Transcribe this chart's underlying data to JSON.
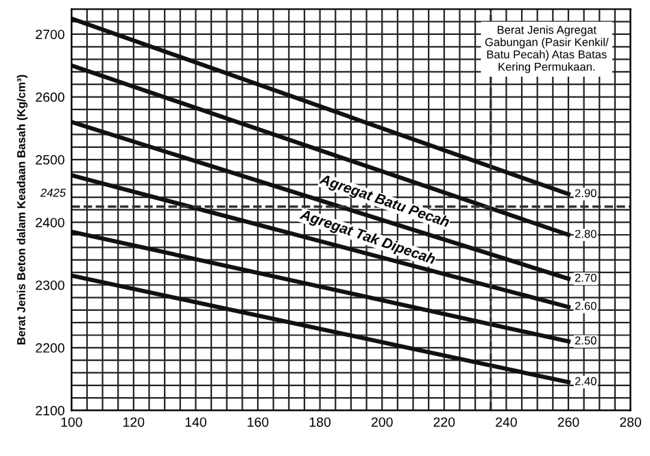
{
  "chart_data": {
    "type": "line",
    "ylabel": "Berat Jenis Beton dalam Keadaan Basah (Kg/cm³)",
    "x": [
      100,
      260
    ],
    "series": [
      {
        "name": "2.90",
        "color": "#111111",
        "values": [
          2725,
          2445
        ]
      },
      {
        "name": "2.80",
        "color": "#111111",
        "values": [
          2650,
          2380
        ]
      },
      {
        "name": "2.70",
        "color": "#111111",
        "values": [
          2560,
          2310
        ]
      },
      {
        "name": "2.60",
        "color": "#111111",
        "values": [
          2475,
          2265
        ]
      },
      {
        "name": "2.50",
        "color": "#111111",
        "values": [
          2385,
          2210
        ]
      },
      {
        "name": "2.40",
        "color": "#111111",
        "values": [
          2315,
          2145
        ]
      }
    ],
    "xlim": [
      100,
      280
    ],
    "xticks": [
      100,
      {
        "value": 105,
        "label": null
      },
      {
        "value": 110,
        "label": null
      },
      {
        "value": 115,
        "label": null
      },
      120,
      {
        "value": 125,
        "label": null
      },
      {
        "value": 130,
        "label": null
      },
      {
        "value": 135,
        "label": null
      },
      140,
      {
        "value": 145,
        "label": null
      },
      {
        "value": 150,
        "label": null
      },
      {
        "value": 155,
        "label": null
      },
      160,
      {
        "value": 165,
        "label": null
      },
      {
        "value": 170,
        "label": null
      },
      {
        "value": 175,
        "label": null
      },
      180,
      {
        "value": 185,
        "label": null
      },
      {
        "value": 190,
        "label": null
      },
      {
        "value": 195,
        "label": null
      },
      200,
      {
        "value": 205,
        "label": null
      },
      {
        "value": 210,
        "label": null
      },
      {
        "value": 215,
        "label": null
      },
      220,
      {
        "value": 225,
        "label": null
      },
      {
        "value": 230,
        "label": null
      },
      {
        "value": 235,
        "label": null
      },
      240,
      {
        "value": 245,
        "label": null
      },
      {
        "value": 250,
        "label": null
      },
      {
        "value": 255,
        "label": null
      },
      260,
      {
        "value": 265,
        "label": null
      },
      {
        "value": 270,
        "label": null
      },
      {
        "value": 275,
        "label": null
      },
      280
    ],
    "ylim": [
      2100,
      2740
    ],
    "yticks": [
      2100,
      {
        "value": 2120,
        "label": null
      },
      {
        "value": 2140,
        "label": null
      },
      {
        "value": 2160,
        "label": null
      },
      {
        "value": 2180,
        "label": null
      },
      2200,
      {
        "value": 2220,
        "label": null
      },
      {
        "value": 2240,
        "label": null
      },
      {
        "value": 2260,
        "label": null
      },
      {
        "value": 2280,
        "label": null
      },
      2300,
      {
        "value": 2320,
        "label": null
      },
      {
        "value": 2340,
        "label": null
      },
      {
        "value": 2360,
        "label": null
      },
      {
        "value": 2380,
        "label": null
      },
      2400,
      {
        "value": 2420,
        "label": null
      },
      {
        "value": 2440,
        "label": null
      },
      {
        "value": 2460,
        "label": null
      },
      {
        "value": 2480,
        "label": null
      },
      2500,
      {
        "value": 2520,
        "label": null
      },
      {
        "value": 2540,
        "label": null
      },
      {
        "value": 2560,
        "label": null
      },
      {
        "value": 2580,
        "label": null
      },
      2600,
      {
        "value": 2620,
        "label": null
      },
      {
        "value": 2640,
        "label": null
      },
      {
        "value": 2660,
        "label": null
      },
      {
        "value": 2680,
        "label": null
      },
      2700,
      {
        "value": 2720,
        "label": null
      }
    ],
    "grid": true,
    "line_style": "solid",
    "marker": "none",
    "ref_lines": [
      {
        "axis": "y",
        "value": 2425,
        "label": "2425",
        "line_style": "dashed"
      },
      {
        "axis": "x",
        "value": 235,
        "label": null,
        "line_style": "dashed"
      }
    ],
    "annotations": [
      "Berat Jenis Agregat\nGabungan (Pasir Kenkil/\nBatu Pecah) Atas Batas\nKering Permukaan.",
      "Agregat Batu Pecah",
      "Agregat Tak Dipecah"
    ]
  }
}
